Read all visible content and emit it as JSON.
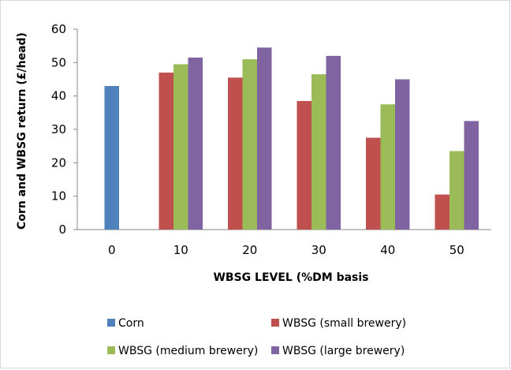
{
  "chart_data": {
    "type": "bar",
    "title": "",
    "xlabel": "WBSG LEVEL (%DM basis",
    "ylabel": "Corn and WBSG return (£/head)",
    "categories": [
      "0",
      "10",
      "20",
      "30",
      "40",
      "50"
    ],
    "ylim": [
      0,
      60
    ],
    "yticks": [
      "0",
      "10",
      "20",
      "30",
      "40",
      "50",
      "60"
    ],
    "grid": false,
    "legend_position": "bottom",
    "series": [
      {
        "name": "Corn",
        "color": "#4F81BD",
        "values": [
          43,
          null,
          null,
          null,
          null,
          null
        ]
      },
      {
        "name": "WBSG (small brewery)",
        "color": "#C0504D",
        "values": [
          null,
          47,
          45.5,
          38.5,
          27.5,
          10.5
        ]
      },
      {
        "name": "WBSG (medium brewery)",
        "color": "#9BBB59",
        "values": [
          null,
          49.5,
          51,
          46.5,
          37.5,
          23.5
        ]
      },
      {
        "name": "WBSG (large brewery)",
        "color": "#8064A2",
        "values": [
          null,
          51.5,
          54.5,
          52,
          45,
          32.5
        ]
      }
    ]
  }
}
